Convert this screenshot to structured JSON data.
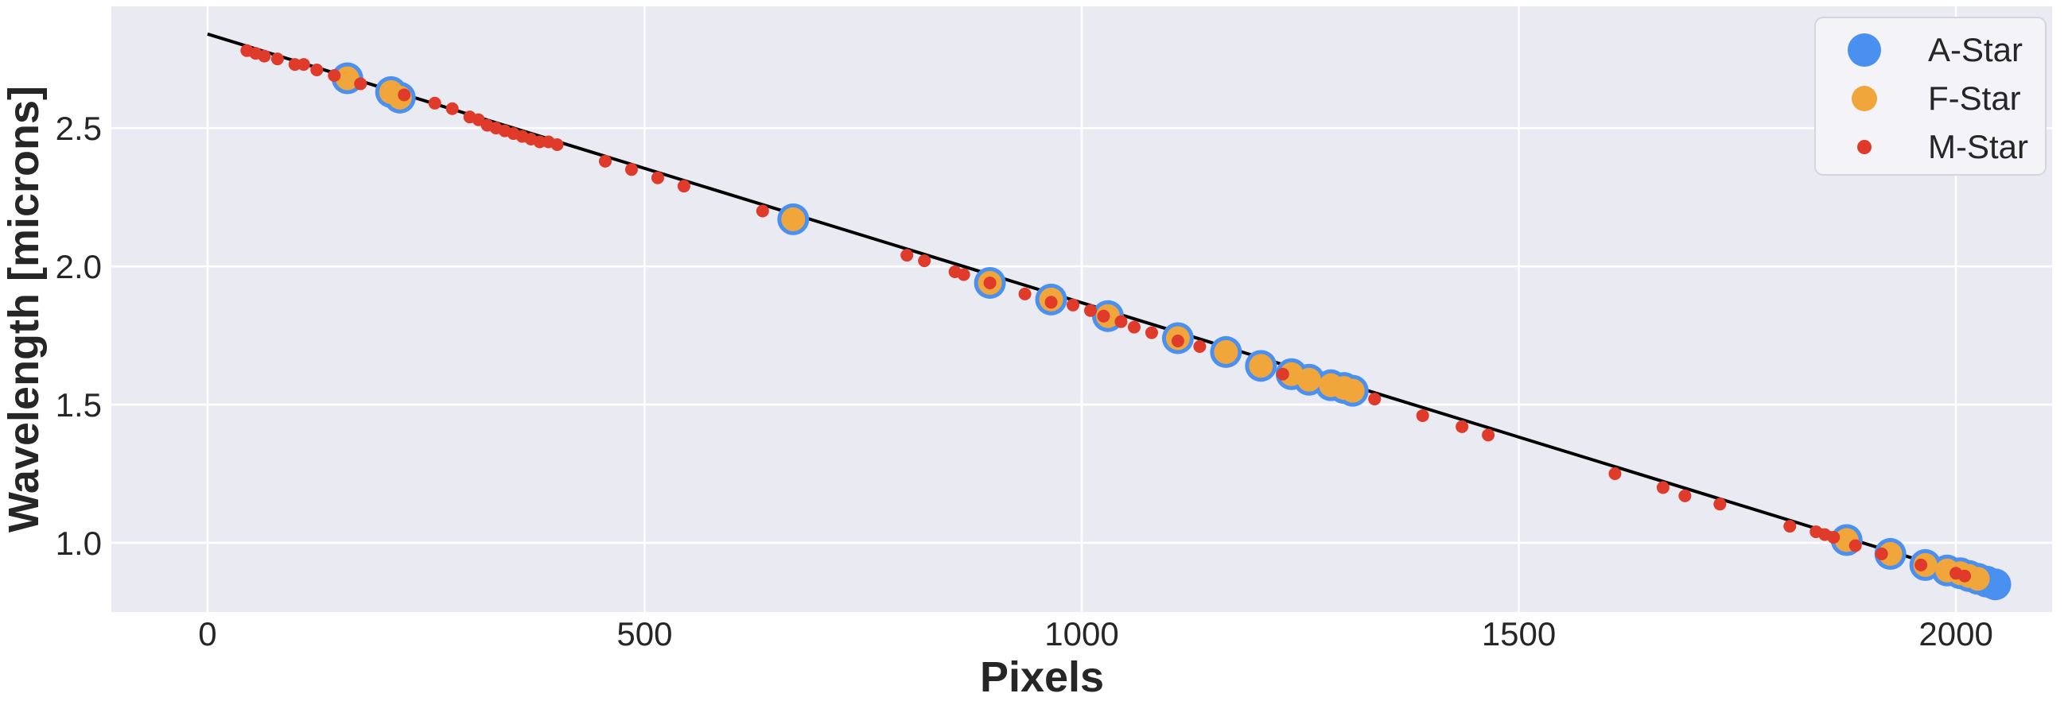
{
  "chart_data": {
    "type": "scatter",
    "title": "",
    "xlabel": "Pixels",
    "ylabel": "Wavelength [microns]",
    "xlim": [
      -110,
      2110
    ],
    "ylim": [
      0.75,
      2.94
    ],
    "xticks": [
      0,
      500,
      1000,
      1500,
      2000
    ],
    "yticks": [
      1.0,
      1.5,
      2.0,
      2.5
    ],
    "xtick_labels": [
      "0",
      "500",
      "1000",
      "1500",
      "2000"
    ],
    "ytick_labels": [
      "1.0",
      "1.5",
      "2.0",
      "2.5"
    ],
    "grid": true,
    "legend_position": "top-right",
    "fit_line": {
      "x": [
        0,
        2048
      ],
      "y": [
        2.84,
        0.85
      ],
      "color": "#000000"
    },
    "series": [
      {
        "name": "A-Star",
        "color": "#4a90f0",
        "marker_size": "large",
        "x": [
          160,
          210,
          220,
          670,
          895,
          965,
          1030,
          1110,
          1165,
          1205,
          1240,
          1260,
          1285,
          1300,
          1310,
          1875,
          1925,
          1965,
          1990,
          2005,
          2015,
          2025,
          2035,
          2045
        ],
        "y": [
          2.68,
          2.63,
          2.61,
          2.17,
          1.94,
          1.88,
          1.82,
          1.74,
          1.69,
          1.64,
          1.61,
          1.59,
          1.57,
          1.56,
          1.55,
          1.01,
          0.96,
          0.92,
          0.9,
          0.89,
          0.88,
          0.87,
          0.86,
          0.85
        ]
      },
      {
        "name": "F-Star",
        "color": "#f0a63a",
        "marker_size": "medium",
        "x": [
          160,
          210,
          220,
          670,
          895,
          965,
          1030,
          1110,
          1165,
          1205,
          1240,
          1260,
          1285,
          1300,
          1310,
          1875,
          1925,
          1965,
          1990,
          2005,
          2015,
          2025
        ],
        "y": [
          2.68,
          2.63,
          2.61,
          2.17,
          1.94,
          1.88,
          1.82,
          1.74,
          1.69,
          1.64,
          1.61,
          1.59,
          1.57,
          1.56,
          1.55,
          1.01,
          0.96,
          0.92,
          0.9,
          0.89,
          0.88,
          0.87
        ]
      },
      {
        "name": "M-Star",
        "color": "#e03a2a",
        "marker_size": "small",
        "x": [
          45,
          55,
          65,
          80,
          100,
          110,
          125,
          145,
          175,
          225,
          260,
          280,
          300,
          310,
          320,
          330,
          340,
          350,
          360,
          370,
          380,
          390,
          400,
          455,
          485,
          515,
          545,
          635,
          800,
          820,
          855,
          865,
          895,
          935,
          965,
          990,
          1010,
          1025,
          1045,
          1060,
          1080,
          1110,
          1135,
          1230,
          1335,
          1390,
          1435,
          1465,
          1610,
          1665,
          1690,
          1730,
          1810,
          1840,
          1850,
          1860,
          1885,
          1915,
          1960,
          2000,
          2010
        ],
        "y": [
          2.78,
          2.77,
          2.76,
          2.75,
          2.73,
          2.73,
          2.71,
          2.69,
          2.66,
          2.62,
          2.59,
          2.57,
          2.54,
          2.53,
          2.51,
          2.5,
          2.49,
          2.48,
          2.47,
          2.46,
          2.45,
          2.45,
          2.44,
          2.38,
          2.35,
          2.32,
          2.29,
          2.2,
          2.04,
          2.02,
          1.98,
          1.97,
          1.94,
          1.9,
          1.87,
          1.86,
          1.84,
          1.82,
          1.8,
          1.78,
          1.76,
          1.73,
          1.71,
          1.61,
          1.52,
          1.46,
          1.42,
          1.39,
          1.25,
          1.2,
          1.17,
          1.14,
          1.06,
          1.04,
          1.03,
          1.02,
          0.99,
          0.96,
          0.92,
          0.89,
          0.88
        ]
      }
    ]
  }
}
